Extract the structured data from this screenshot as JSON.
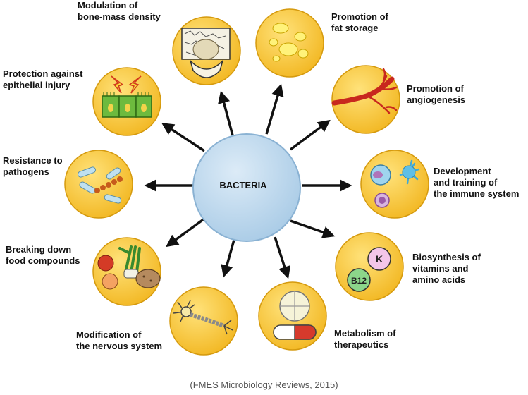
{
  "center": {
    "label": "BACTERIA"
  },
  "caption": "(FMES Microbiology Reviews, 2015)",
  "colors": {
    "center_fill": "#b9d6ec",
    "center_stroke": "#8ab2d3",
    "circle_fill": "#f6c232",
    "circle_stroke": "#d59a0e",
    "arrow": "#111111"
  },
  "effects": [
    {
      "id": "bone",
      "label": "Modulation of\nbone-mass density",
      "icon": "bone-cell-icon"
    },
    {
      "id": "fat",
      "label": "Promotion of\nfat storage",
      "icon": "fat-droplets-icon"
    },
    {
      "id": "angio",
      "label": "Promotion of\nangiogenesis",
      "icon": "blood-vessel-icon"
    },
    {
      "id": "immune",
      "label": "Development\nand training of\nthe immune system",
      "icon": "immune-cells-icon"
    },
    {
      "id": "vitamins",
      "label": "Biosynthesis of\nvitamins and\namino acids",
      "icon": "vitamins-icon",
      "badges": [
        "K",
        "B12"
      ]
    },
    {
      "id": "therapeutics",
      "label": "Metabolism of\ntherapeutics",
      "icon": "pills-icon"
    },
    {
      "id": "nervous",
      "label": "Modification of\nthe nervous system",
      "icon": "neuron-icon"
    },
    {
      "id": "food",
      "label": "Breaking down\nfood compounds",
      "icon": "vegetables-icon"
    },
    {
      "id": "pathogens",
      "label": "Resistance to\npathogens",
      "icon": "pathogens-icon"
    },
    {
      "id": "epithelial",
      "label": "Protection against\nepithelial injury",
      "icon": "epithelial-cells-icon"
    }
  ]
}
